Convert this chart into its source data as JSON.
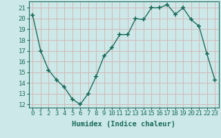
{
  "x": [
    0,
    1,
    2,
    3,
    4,
    5,
    6,
    7,
    8,
    9,
    10,
    11,
    12,
    13,
    14,
    15,
    16,
    17,
    18,
    19,
    20,
    21,
    22,
    23
  ],
  "y": [
    20.3,
    17.0,
    15.2,
    14.3,
    13.6,
    12.5,
    12.0,
    13.0,
    14.6,
    16.5,
    17.3,
    18.5,
    18.5,
    20.0,
    19.9,
    21.0,
    21.0,
    21.3,
    20.4,
    21.0,
    19.9,
    19.3,
    16.7,
    14.3
  ],
  "xlabel": "Humidex (Indice chaleur)",
  "ylim": [
    11.7,
    21.6
  ],
  "yticks": [
    12,
    13,
    14,
    15,
    16,
    17,
    18,
    19,
    20,
    21
  ],
  "xticks": [
    0,
    1,
    2,
    3,
    4,
    5,
    6,
    7,
    8,
    9,
    10,
    11,
    12,
    13,
    14,
    15,
    16,
    17,
    18,
    19,
    20,
    21,
    22,
    23
  ],
  "line_color": "#1a6b5a",
  "marker": "+",
  "marker_size": 4,
  "bg_color": "#cce8e8",
  "grid_color": "#d4b8b8",
  "tick_label_fontsize": 6.5,
  "xlabel_fontsize": 7.5,
  "line_width": 1.0
}
